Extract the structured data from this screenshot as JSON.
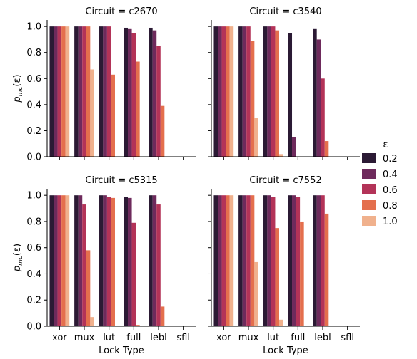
{
  "chart_data": {
    "type": "bar",
    "categories": [
      "xor",
      "mux",
      "lut",
      "full",
      "lebl",
      "sfll"
    ],
    "xlabel": "Lock Type",
    "ylabel": "p_mc(ε)",
    "ylabel_main": "p",
    "ylabel_sub": "mc",
    "ylabel_tail": "(ε)",
    "ylim": [
      0,
      1.05
    ],
    "yticks": [
      "0.0",
      "0.2",
      "0.4",
      "0.6",
      "0.8",
      "1.0"
    ],
    "legend_title": "ε",
    "legend_position": "right",
    "series_colors": [
      "#2b1a34",
      "#6e2a5c",
      "#b33358",
      "#e46f4d",
      "#f0b18d"
    ],
    "series_names": [
      "0.2",
      "0.4",
      "0.6",
      "0.8",
      "1.0"
    ],
    "panels": [
      {
        "title": "Circuit = c2670",
        "series": [
          {
            "name": "0.2",
            "values": [
              1.0,
              1.0,
              1.0,
              0.99,
              0.99,
              0.0
            ]
          },
          {
            "name": "0.4",
            "values": [
              1.0,
              1.0,
              1.0,
              0.98,
              0.97,
              0.0
            ]
          },
          {
            "name": "0.6",
            "values": [
              1.0,
              1.0,
              1.0,
              0.95,
              0.85,
              0.0
            ]
          },
          {
            "name": "0.8",
            "values": [
              1.0,
              1.0,
              0.63,
              0.73,
              0.39,
              0.0
            ]
          },
          {
            "name": "1.0",
            "values": [
              1.0,
              0.67,
              0.0,
              0.0,
              0.0,
              0.0
            ]
          }
        ]
      },
      {
        "title": "Circuit = c3540",
        "series": [
          {
            "name": "0.2",
            "values": [
              1.0,
              1.0,
              1.0,
              0.95,
              0.98,
              0.0
            ]
          },
          {
            "name": "0.4",
            "values": [
              1.0,
              1.0,
              1.0,
              0.15,
              0.9,
              0.0
            ]
          },
          {
            "name": "0.6",
            "values": [
              1.0,
              1.0,
              1.0,
              0.0,
              0.6,
              0.0
            ]
          },
          {
            "name": "0.8",
            "values": [
              1.0,
              0.89,
              0.97,
              0.0,
              0.12,
              0.0
            ]
          },
          {
            "name": "1.0",
            "values": [
              1.0,
              0.3,
              0.02,
              0.0,
              0.0,
              0.0
            ]
          }
        ]
      },
      {
        "title": "Circuit = c5315",
        "series": [
          {
            "name": "0.2",
            "values": [
              1.0,
              1.0,
              1.0,
              0.99,
              1.0,
              0.0
            ]
          },
          {
            "name": "0.4",
            "values": [
              1.0,
              1.0,
              1.0,
              0.98,
              1.0,
              0.0
            ]
          },
          {
            "name": "0.6",
            "values": [
              1.0,
              0.93,
              0.99,
              0.79,
              0.93,
              0.0
            ]
          },
          {
            "name": "0.8",
            "values": [
              1.0,
              0.58,
              0.98,
              0.01,
              0.15,
              0.0
            ]
          },
          {
            "name": "1.0",
            "values": [
              1.0,
              0.07,
              0.0,
              0.0,
              0.0,
              0.0
            ]
          }
        ]
      },
      {
        "title": "Circuit = c7552",
        "series": [
          {
            "name": "0.2",
            "values": [
              1.0,
              1.0,
              1.0,
              1.0,
              1.0,
              0.0
            ]
          },
          {
            "name": "0.4",
            "values": [
              1.0,
              1.0,
              1.0,
              1.0,
              1.0,
              0.0
            ]
          },
          {
            "name": "0.6",
            "values": [
              1.0,
              1.0,
              0.99,
              0.99,
              1.0,
              0.0
            ]
          },
          {
            "name": "0.8",
            "values": [
              1.0,
              1.0,
              0.75,
              0.8,
              0.86,
              0.0
            ]
          },
          {
            "name": "1.0",
            "values": [
              1.0,
              0.49,
              0.05,
              0.0,
              0.0,
              0.0
            ]
          }
        ]
      }
    ]
  }
}
